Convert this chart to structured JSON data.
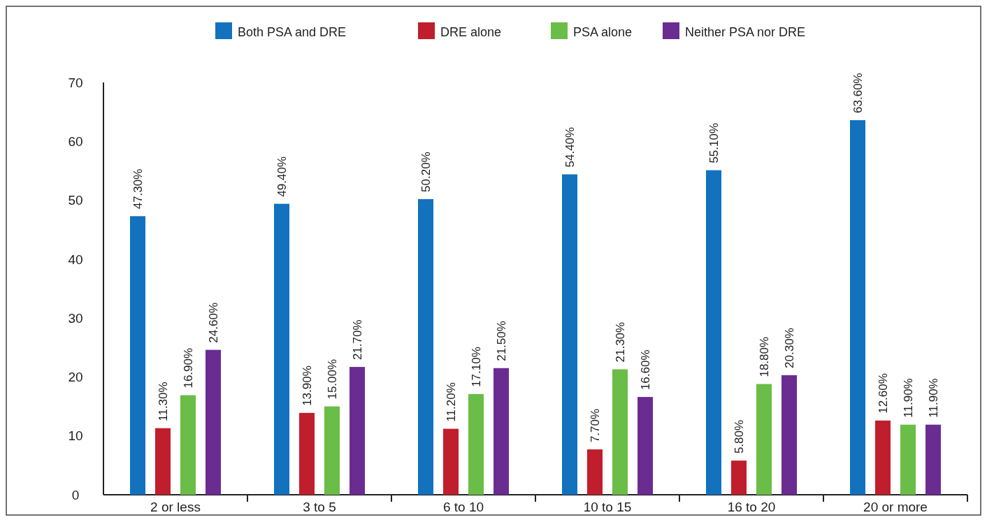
{
  "chart_data": {
    "type": "bar",
    "categories": [
      "2 or less",
      "3 to 5",
      "6 to 10",
      "10 to 15",
      "16 to 20",
      "20 or more"
    ],
    "series": [
      {
        "name": "Both PSA and DRE",
        "color": "#1272be",
        "values": [
          47.3,
          49.4,
          50.2,
          54.4,
          55.1,
          63.6
        ]
      },
      {
        "name": "DRE alone",
        "color": "#c01e2c",
        "values": [
          11.3,
          13.9,
          11.2,
          7.7,
          5.8,
          12.6
        ]
      },
      {
        "name": "PSA alone",
        "color": "#6abd46",
        "values": [
          16.9,
          15.0,
          17.1,
          21.3,
          18.8,
          11.9
        ]
      },
      {
        "name": "Neither PSA nor DRE",
        "color": "#6a2c91",
        "values": [
          24.6,
          21.7,
          21.5,
          16.6,
          20.3,
          11.9
        ]
      }
    ],
    "value_labels": [
      [
        "47.30%",
        "49.40%",
        "50.20%",
        "54.40%",
        "55.10%",
        "63.60%"
      ],
      [
        "11.30%",
        "13.90%",
        "11.20%",
        "7.70%",
        "5.80%",
        "12.60%"
      ],
      [
        "16.90%",
        "15.00%",
        "17.10%",
        "21.30%",
        "18.80%",
        "11.90%"
      ],
      [
        "24.60%",
        "21.70%",
        "21.50%",
        "16.60%",
        "20.30%",
        "11.90%"
      ]
    ],
    "ylim": [
      0,
      70
    ],
    "yticks": [
      0,
      10,
      20,
      30,
      40,
      50,
      60,
      70
    ],
    "legend": "top",
    "grid": false
  }
}
